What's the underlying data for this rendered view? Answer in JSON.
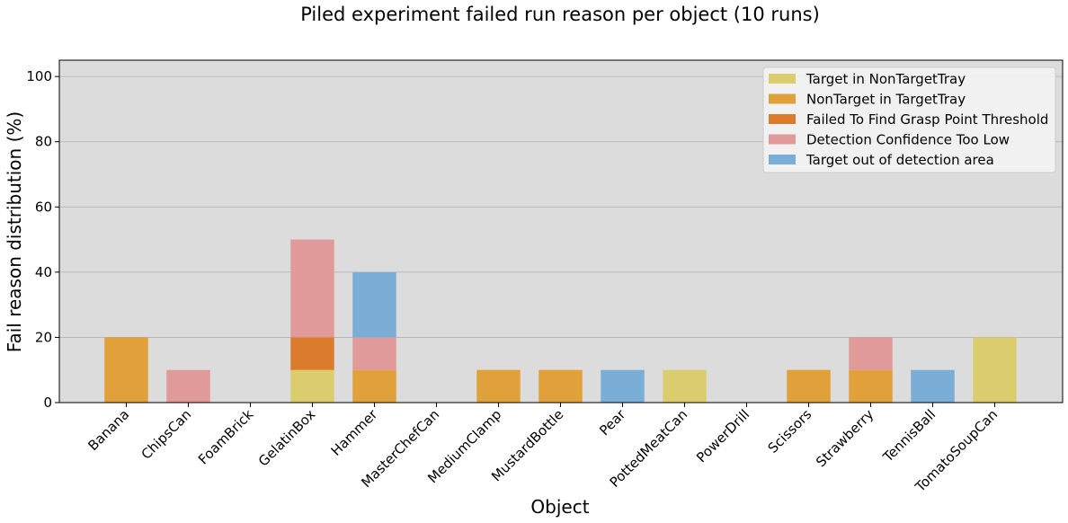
{
  "chart_data": {
    "type": "bar",
    "stacked": true,
    "title": "Piled experiment failed run reason per object (10 runs)",
    "xlabel": "Object",
    "ylabel": "Fail reason distribution (%)",
    "ylim": [
      0,
      105
    ],
    "yticks": [
      0,
      20,
      40,
      60,
      80,
      100
    ],
    "grid": "y",
    "legend_position": "top-right",
    "background": "#dcdcdc",
    "categories": [
      "Banana",
      "ChipsCan",
      "FoamBrick",
      "GelatinBox",
      "Hammer",
      "MasterChefCan",
      "MediumClamp",
      "MustardBottle",
      "Pear",
      "PottedMeatCan",
      "PowerDrill",
      "Scissors",
      "Strawberry",
      "TennisBall",
      "TomatoSoupCan"
    ],
    "series": [
      {
        "name": "Target in NonTargetTray",
        "color": "#dbcd6e",
        "values": [
          0,
          0,
          0,
          10,
          0,
          0,
          0,
          0,
          0,
          10,
          0,
          0,
          0,
          0,
          20
        ]
      },
      {
        "name": "NonTarget in TargetTray",
        "color": "#e0a03a",
        "values": [
          20,
          0,
          0,
          0,
          10,
          0,
          10,
          10,
          0,
          0,
          0,
          10,
          10,
          0,
          0
        ]
      },
      {
        "name": "Failed To Find Grasp Point Threshold",
        "color": "#da7c2b",
        "values": [
          0,
          0,
          0,
          10,
          0,
          0,
          0,
          0,
          0,
          0,
          0,
          0,
          0,
          0,
          0
        ]
      },
      {
        "name": "Detection Confidence Too Low",
        "color": "#e19a9a",
        "values": [
          0,
          10,
          0,
          30,
          10,
          0,
          0,
          0,
          0,
          0,
          0,
          0,
          10,
          0,
          0
        ]
      },
      {
        "name": "Target out of detection area",
        "color": "#7aaed6",
        "values": [
          0,
          0,
          0,
          0,
          20,
          0,
          0,
          0,
          10,
          0,
          0,
          0,
          0,
          10,
          0
        ]
      }
    ]
  }
}
